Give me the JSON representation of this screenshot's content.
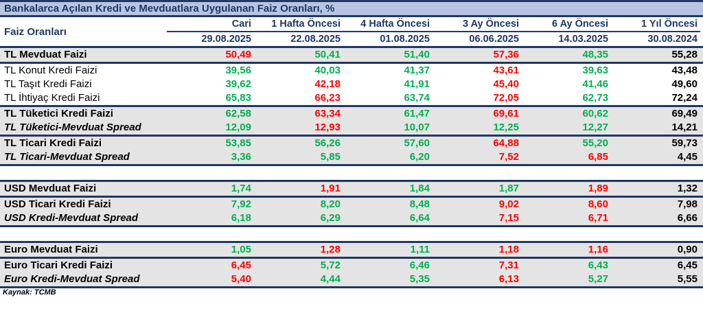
{
  "title": "Bankalarca Açılan Kredi ve Mevduatlara Uygulanan Faiz Oranları, %",
  "colors": {
    "green": "#00b050",
    "red": "#ff0000",
    "black": "#000000",
    "navy": "#1f3864",
    "title_bg": "#b7c4e2",
    "row_shade": "#e4e4e4"
  },
  "header": {
    "label_col": "Faiz Oranları",
    "columns": [
      {
        "label": "Cari",
        "date": "29.08.2025"
      },
      {
        "label": "1 Hafta Öncesi",
        "date": "22.08.2025"
      },
      {
        "label": "4 Hafta Öncesi",
        "date": "01.08.2025"
      },
      {
        "label": "3 Ay Öncesi",
        "date": "06.06.2025"
      },
      {
        "label": "6 Ay Öncesi",
        "date": "14.03.2025"
      },
      {
        "label": "1 Yıl Öncesi",
        "date": "30.08.2024"
      }
    ]
  },
  "rows": [
    {
      "type": "data",
      "label": "TL Mevduat Faizi",
      "bold": true,
      "shaded": true,
      "values": [
        {
          "v": "50,49",
          "c": "red"
        },
        {
          "v": "50,41",
          "c": "green"
        },
        {
          "v": "51,40",
          "c": "green"
        },
        {
          "v": "57,36",
          "c": "red"
        },
        {
          "v": "48,35",
          "c": "green"
        },
        {
          "v": "55,28",
          "c": "black"
        }
      ]
    },
    {
      "type": "sep"
    },
    {
      "type": "data",
      "label": "TL Konut Kredi Faizi",
      "bold": false,
      "shaded": false,
      "values": [
        {
          "v": "39,56",
          "c": "green"
        },
        {
          "v": "40,03",
          "c": "green"
        },
        {
          "v": "41,37",
          "c": "green"
        },
        {
          "v": "43,61",
          "c": "red"
        },
        {
          "v": "39,63",
          "c": "green"
        },
        {
          "v": "43,48",
          "c": "black"
        }
      ]
    },
    {
      "type": "data",
      "label": "TL Taşıt Kredi Faizi",
      "bold": false,
      "shaded": false,
      "values": [
        {
          "v": "39,62",
          "c": "green"
        },
        {
          "v": "42,18",
          "c": "red"
        },
        {
          "v": "41,91",
          "c": "green"
        },
        {
          "v": "45,40",
          "c": "red"
        },
        {
          "v": "41,46",
          "c": "green"
        },
        {
          "v": "49,60",
          "c": "black"
        }
      ]
    },
    {
      "type": "data",
      "label": "TL İhtiyaç Kredi Faizi",
      "bold": false,
      "shaded": false,
      "values": [
        {
          "v": "65,83",
          "c": "green"
        },
        {
          "v": "66,23",
          "c": "red"
        },
        {
          "v": "63,74",
          "c": "green"
        },
        {
          "v": "72,05",
          "c": "red"
        },
        {
          "v": "62,73",
          "c": "green"
        },
        {
          "v": "72,24",
          "c": "black"
        }
      ]
    },
    {
      "type": "sep"
    },
    {
      "type": "data",
      "label": "TL Tüketici Kredi Faizi",
      "bold": true,
      "shaded": true,
      "values": [
        {
          "v": "62,58",
          "c": "green"
        },
        {
          "v": "63,34",
          "c": "red"
        },
        {
          "v": "61,47",
          "c": "green"
        },
        {
          "v": "69,61",
          "c": "red"
        },
        {
          "v": "60,62",
          "c": "green"
        },
        {
          "v": "69,49",
          "c": "black"
        }
      ]
    },
    {
      "type": "data",
      "label": "TL Tüketici-Mevduat Spread",
      "bold": true,
      "italic": true,
      "shaded": true,
      "values": [
        {
          "v": "12,09",
          "c": "green"
        },
        {
          "v": "12,93",
          "c": "red"
        },
        {
          "v": "10,07",
          "c": "green"
        },
        {
          "v": "12,25",
          "c": "green"
        },
        {
          "v": "12,27",
          "c": "green"
        },
        {
          "v": "14,21",
          "c": "black"
        }
      ]
    },
    {
      "type": "sep"
    },
    {
      "type": "data",
      "label": "TL Ticari Kredi Faizi",
      "bold": true,
      "shaded": true,
      "values": [
        {
          "v": "53,85",
          "c": "green"
        },
        {
          "v": "56,26",
          "c": "green"
        },
        {
          "v": "57,60",
          "c": "green"
        },
        {
          "v": "64,88",
          "c": "red"
        },
        {
          "v": "55,20",
          "c": "green"
        },
        {
          "v": "59,73",
          "c": "black"
        }
      ]
    },
    {
      "type": "data",
      "label": "TL Ticari-Mevduat Spread",
      "bold": true,
      "italic": true,
      "shaded": true,
      "values": [
        {
          "v": "3,36",
          "c": "green"
        },
        {
          "v": "5,85",
          "c": "green"
        },
        {
          "v": "6,20",
          "c": "green"
        },
        {
          "v": "7,52",
          "c": "red"
        },
        {
          "v": "6,85",
          "c": "red"
        },
        {
          "v": "4,45",
          "c": "black"
        }
      ]
    },
    {
      "type": "sep"
    },
    {
      "type": "gap"
    },
    {
      "type": "sep"
    },
    {
      "type": "data",
      "label": "USD Mevduat Faizi",
      "bold": true,
      "shaded": true,
      "values": [
        {
          "v": "1,74",
          "c": "green"
        },
        {
          "v": "1,91",
          "c": "red"
        },
        {
          "v": "1,84",
          "c": "green"
        },
        {
          "v": "1,87",
          "c": "green"
        },
        {
          "v": "1,89",
          "c": "red"
        },
        {
          "v": "1,32",
          "c": "black"
        }
      ]
    },
    {
      "type": "sep"
    },
    {
      "type": "data",
      "label": "USD Ticari Kredi Faizi",
      "bold": true,
      "shaded": true,
      "values": [
        {
          "v": "7,92",
          "c": "green"
        },
        {
          "v": "8,20",
          "c": "green"
        },
        {
          "v": "8,48",
          "c": "green"
        },
        {
          "v": "9,02",
          "c": "red"
        },
        {
          "v": "8,60",
          "c": "red"
        },
        {
          "v": "7,98",
          "c": "black"
        }
      ]
    },
    {
      "type": "data",
      "label": "USD Kredi-Mevduat Spread",
      "bold": true,
      "italic": true,
      "shaded": true,
      "values": [
        {
          "v": "6,18",
          "c": "green"
        },
        {
          "v": "6,29",
          "c": "green"
        },
        {
          "v": "6,64",
          "c": "green"
        },
        {
          "v": "7,15",
          "c": "red"
        },
        {
          "v": "6,71",
          "c": "red"
        },
        {
          "v": "6,66",
          "c": "black"
        }
      ]
    },
    {
      "type": "sep"
    },
    {
      "type": "gap"
    },
    {
      "type": "sep"
    },
    {
      "type": "data",
      "label": "Euro Mevduat Faizi",
      "bold": true,
      "shaded": true,
      "values": [
        {
          "v": "1,05",
          "c": "green"
        },
        {
          "v": "1,28",
          "c": "red"
        },
        {
          "v": "1,11",
          "c": "green"
        },
        {
          "v": "1,18",
          "c": "red"
        },
        {
          "v": "1,16",
          "c": "red"
        },
        {
          "v": "0,90",
          "c": "black"
        }
      ]
    },
    {
      "type": "sep"
    },
    {
      "type": "data",
      "label": "Euro Ticari Kredi Faizi",
      "bold": true,
      "shaded": true,
      "values": [
        {
          "v": "6,45",
          "c": "red"
        },
        {
          "v": "5,72",
          "c": "green"
        },
        {
          "v": "6,46",
          "c": "green"
        },
        {
          "v": "7,31",
          "c": "red"
        },
        {
          "v": "6,43",
          "c": "green"
        },
        {
          "v": "6,45",
          "c": "black"
        }
      ]
    },
    {
      "type": "data",
      "label": "Euro Kredi-Mevduat Spread",
      "bold": true,
      "italic": true,
      "shaded": true,
      "values": [
        {
          "v": "5,40",
          "c": "red"
        },
        {
          "v": "4,44",
          "c": "green"
        },
        {
          "v": "5,35",
          "c": "green"
        },
        {
          "v": "6,13",
          "c": "red"
        },
        {
          "v": "5,27",
          "c": "green"
        },
        {
          "v": "5,55",
          "c": "black"
        }
      ]
    },
    {
      "type": "sep"
    }
  ],
  "source": "Kaynak: TCMB"
}
